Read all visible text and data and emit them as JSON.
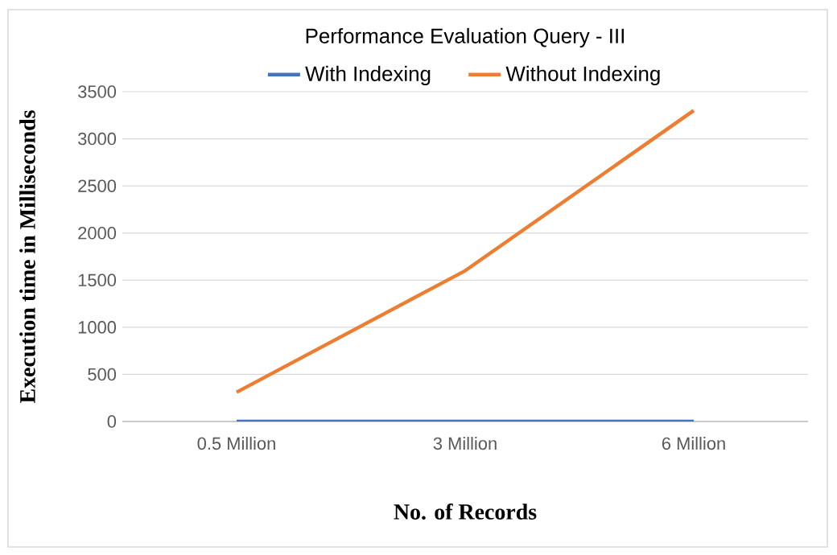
{
  "chart_data": {
    "type": "line",
    "title": "Performance Evaluation Query - III",
    "xlabel": "No. of Records",
    "ylabel": "Execution time in Milliseconds",
    "categories": [
      "0.5 Million",
      "3 Million",
      "6 Million"
    ],
    "series": [
      {
        "name": "With Indexing",
        "color": "#4472c4",
        "values": [
          0,
          0,
          0
        ]
      },
      {
        "name": "Without Indexing",
        "color": "#ed7d31",
        "values": [
          310,
          1600,
          3300
        ]
      }
    ],
    "ylim": [
      0,
      3500
    ],
    "yticks": [
      0,
      500,
      1000,
      1500,
      2000,
      2500,
      3000,
      3500
    ],
    "grid": "y",
    "legend": "top"
  }
}
